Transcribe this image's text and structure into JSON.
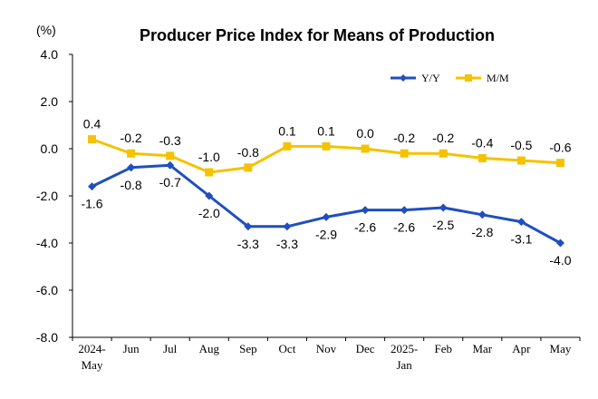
{
  "chart_data": {
    "type": "line",
    "title": "Producer Price Index for Means of Production",
    "unit_label": "(%)",
    "categories": [
      [
        "2024-",
        "May"
      ],
      [
        "Jun"
      ],
      [
        "Jul"
      ],
      [
        "Aug"
      ],
      [
        "Sep"
      ],
      [
        "Oct"
      ],
      [
        "Nov"
      ],
      [
        "Dec"
      ],
      [
        "2025-",
        "Jan"
      ],
      [
        "Feb"
      ],
      [
        "Mar"
      ],
      [
        "Apr"
      ],
      [
        "May"
      ]
    ],
    "yticks": [
      "4.0",
      "2.0",
      "0.0",
      "-2.0",
      "-4.0",
      "-6.0",
      "-8.0"
    ],
    "ylim": [
      -8.0,
      4.0
    ],
    "legend_position": "top-right",
    "grid": false,
    "series": [
      {
        "name": "Y/Y",
        "color": "#1f4fbf",
        "marker": "diamond",
        "values": [
          -1.6,
          -0.8,
          -0.7,
          -2.0,
          -3.3,
          -3.3,
          -2.9,
          -2.6,
          -2.6,
          -2.5,
          -2.8,
          -3.1,
          -4.0
        ],
        "labels": [
          "-1.6",
          "-0.8",
          "-0.7",
          "-2.0",
          "-3.3",
          "-3.3",
          "-2.9",
          "-2.6",
          "-2.6",
          "-2.5",
          "-2.8",
          "-3.1",
          "-4.0"
        ]
      },
      {
        "name": "M/M",
        "color": "#f5c200",
        "marker": "square",
        "values": [
          0.4,
          -0.2,
          -0.3,
          -1.0,
          -0.8,
          0.1,
          0.1,
          0.0,
          -0.2,
          -0.2,
          -0.4,
          -0.5,
          -0.6
        ],
        "labels": [
          "0.4",
          "-0.2",
          "-0.3",
          "-1.0",
          "-0.8",
          "0.1",
          "0.1",
          "0.0",
          "-0.2",
          "-0.2",
          "-0.4",
          "-0.5",
          "-0.6"
        ]
      }
    ]
  }
}
